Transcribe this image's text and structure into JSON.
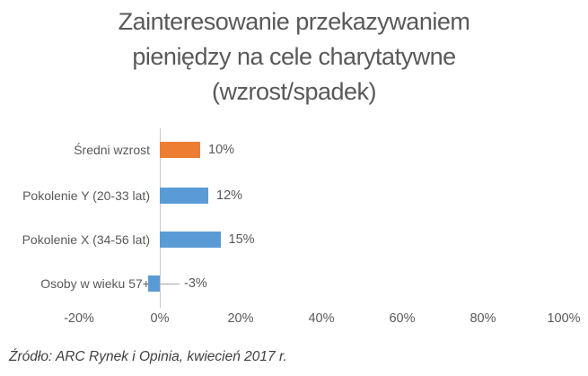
{
  "chart_data": {
    "type": "bar",
    "orientation": "horizontal",
    "title": "Zainteresowanie przekazywaniem pieniędzy na cele charytatywne (wzrost/spadek)",
    "title_lines": [
      "Zainteresowanie przekazywaniem",
      "pieniędzy na cele charytatywne",
      "(wzrost/spadek)"
    ],
    "categories": [
      "Średni wzrost",
      "Pokolenie Y (20-33 lat)",
      "Pokolenie X (34-56 lat)",
      "Osoby w wieku 57+"
    ],
    "values": [
      10,
      12,
      15,
      -3
    ],
    "value_labels": [
      "10%",
      "12%",
      "15%",
      "-3%"
    ],
    "bar_colors": [
      "#ED7D31",
      "#5B9BD5",
      "#5B9BD5",
      "#5B9BD5"
    ],
    "x_tick_labels": [
      "-20%",
      "0%",
      "20%",
      "40%",
      "60%",
      "80%",
      "100%"
    ],
    "x_tick_values": [
      -20,
      0,
      20,
      40,
      60,
      80,
      100
    ],
    "xlim": [
      -20,
      100
    ],
    "grid": false,
    "legend": false
  },
  "footer": {
    "source": "Źródło: ARC Rynek i Opinia, kwiecień 2017 r."
  },
  "colors": {
    "accent_orange": "#ED7D31",
    "series_blue": "#5B9BD5",
    "text_gray": "#595959",
    "axis_line": "#C9C9C9",
    "leader_line": "#A6A6A6",
    "source_text": "#404040",
    "background": "#FFFFFF"
  }
}
